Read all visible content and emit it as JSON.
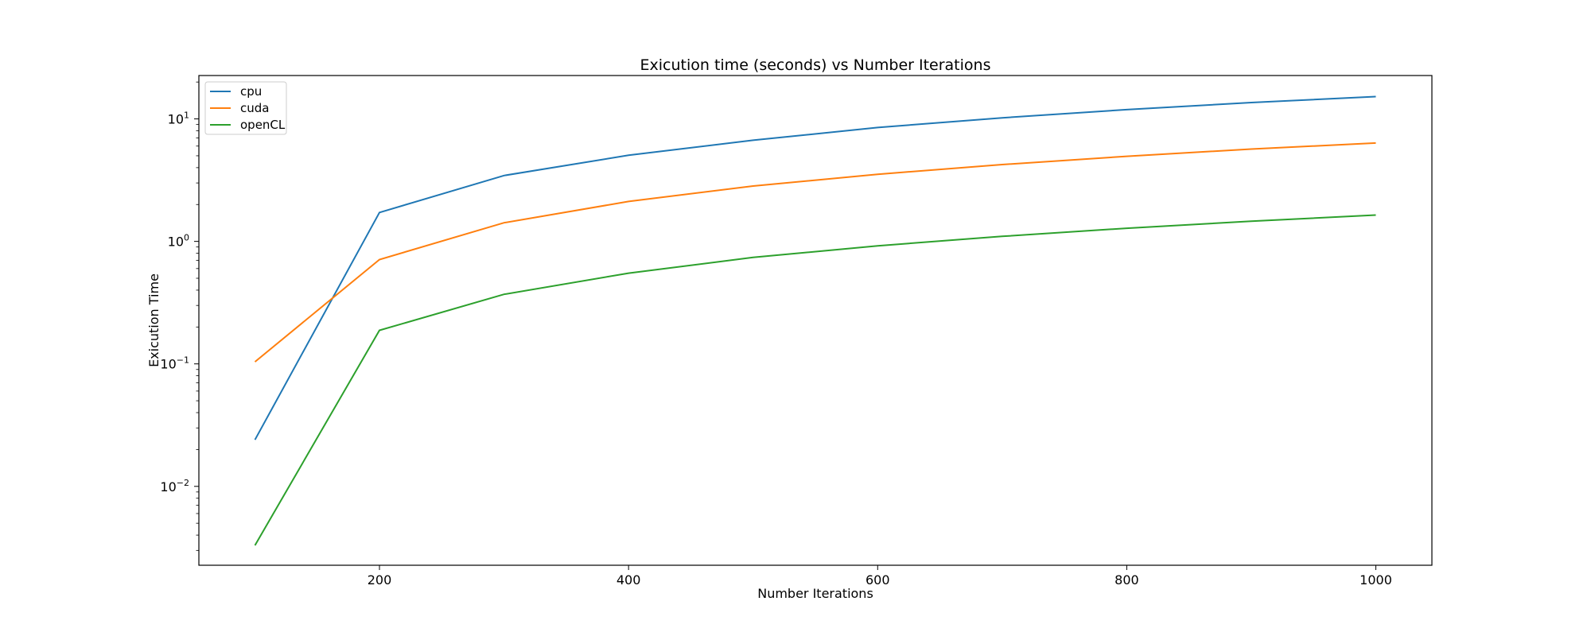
{
  "chart_data": {
    "type": "line",
    "title": "Exicution time (seconds) vs Number Iterations",
    "xlabel": "Number Iterations",
    "ylabel": "Exicution Time",
    "yscale": "log",
    "xlim": [
      55,
      1045
    ],
    "ylim": [
      0.00227,
      22.6
    ],
    "grid": false,
    "legend_position": "top-left",
    "x": [
      100,
      200,
      300,
      400,
      500,
      600,
      700,
      800,
      900,
      1000
    ],
    "series": [
      {
        "name": "cpu",
        "color": "#1f77b4",
        "values": [
          0.024,
          1.72,
          3.45,
          5.05,
          6.7,
          8.5,
          10.2,
          11.9,
          13.6,
          15.2
        ]
      },
      {
        "name": "cuda",
        "color": "#ff7f0e",
        "values": [
          0.104,
          0.71,
          1.42,
          2.12,
          2.83,
          3.53,
          4.24,
          4.95,
          5.67,
          6.35
        ]
      },
      {
        "name": "openCL",
        "color": "#2ca02c",
        "values": [
          0.0033,
          0.188,
          0.37,
          0.55,
          0.74,
          0.92,
          1.1,
          1.28,
          1.46,
          1.64
        ]
      }
    ],
    "x_ticks": [
      {
        "value": 200,
        "label": "200"
      },
      {
        "value": 400,
        "label": "400"
      },
      {
        "value": 600,
        "label": "600"
      },
      {
        "value": 800,
        "label": "800"
      },
      {
        "value": 1000,
        "label": "1000"
      }
    ],
    "y_ticks": [
      {
        "exp": -2,
        "base": "10",
        "power": "−2"
      },
      {
        "exp": -1,
        "base": "10",
        "power": "−1"
      },
      {
        "exp": 0,
        "base": "10",
        "power": "0"
      },
      {
        "exp": 1,
        "base": "10",
        "power": "1"
      }
    ]
  }
}
